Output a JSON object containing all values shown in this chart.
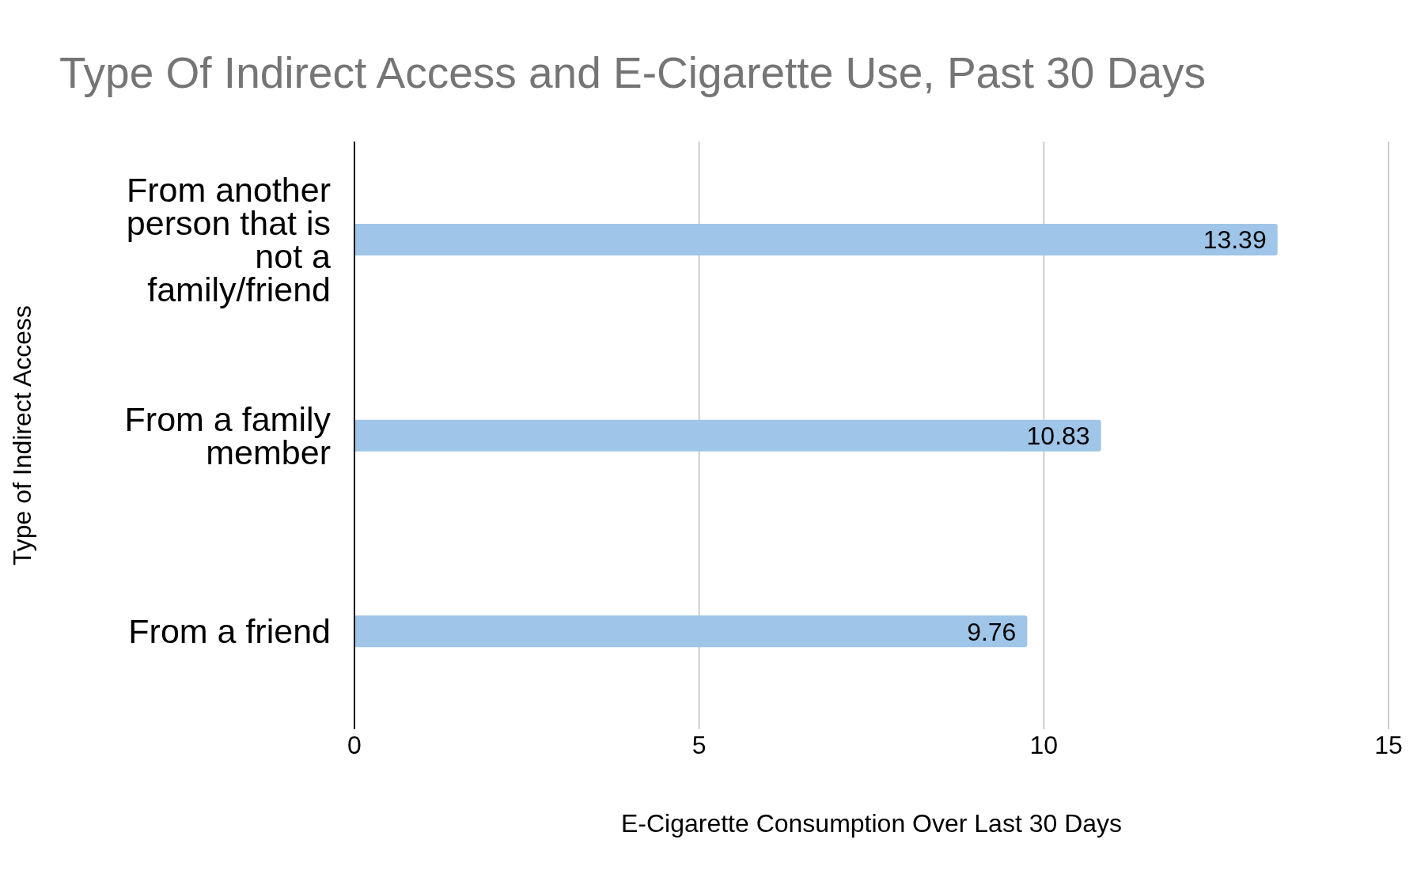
{
  "chart_data": {
    "type": "bar",
    "orientation": "horizontal",
    "title": "Type Of Indirect Access and E-Cigarette Use, Past 30 Days",
    "xlabel": "E-Cigarette Consumption Over Last 30 Days",
    "ylabel": "Type of Indirect Access",
    "categories": [
      "From another person that is not a family/friend",
      "From a family member",
      "From a friend"
    ],
    "values": [
      13.39,
      10.83,
      9.76
    ],
    "color": "#9fc5e8",
    "xlim": [
      0,
      15
    ],
    "xticks": [
      0,
      5,
      10,
      15
    ],
    "grid": "x",
    "data_labels": true
  }
}
